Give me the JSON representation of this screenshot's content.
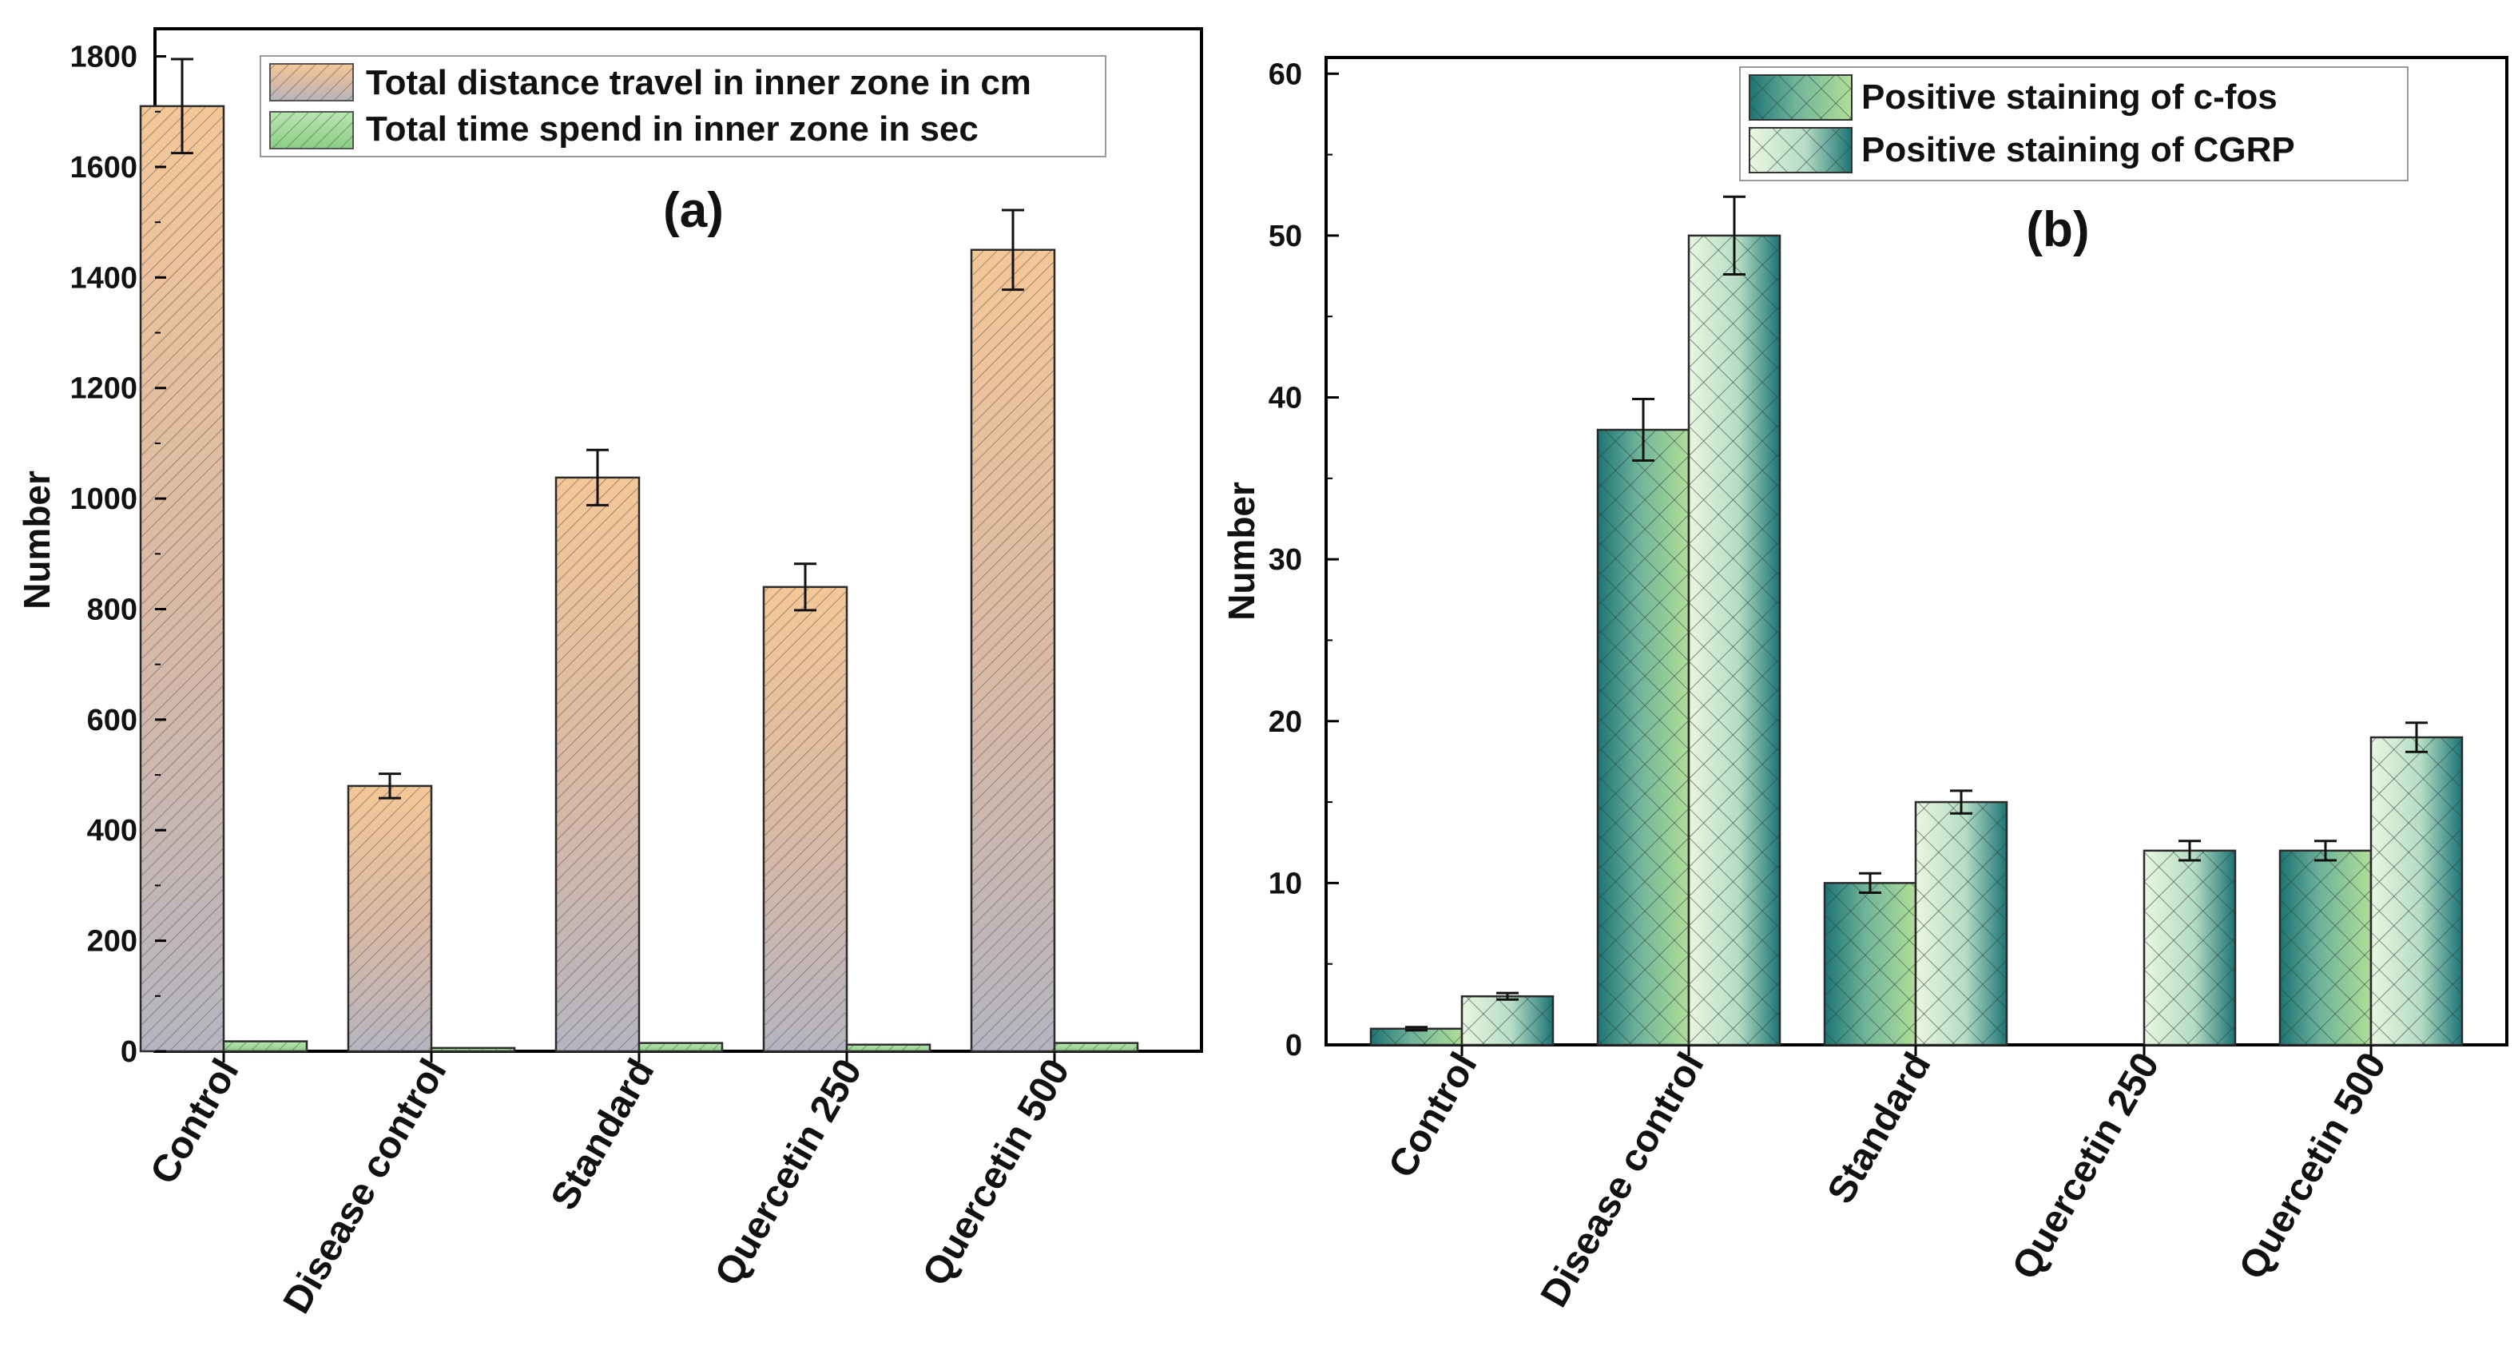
{
  "chart_data": [
    {
      "type": "bar",
      "panel_label": "(a)",
      "title": "",
      "xlabel": "",
      "ylabel": "Number",
      "ylim": [
        0,
        1850
      ],
      "yticks": [
        0,
        200,
        400,
        600,
        800,
        1000,
        1200,
        1400,
        1600,
        1800
      ],
      "categories": [
        "Control",
        "Disease control",
        "Standard",
        "Quercetin 250",
        "Quercetin 500"
      ],
      "series": [
        {
          "name": "Total distance travel in inner zone in cm",
          "values": [
            1710,
            480,
            1038,
            840,
            1450
          ],
          "errors": [
            85,
            22,
            50,
            42,
            72
          ],
          "color_top": "#f3c99a",
          "color_bottom": "#b7b7c2"
        },
        {
          "name": "Total time spend in inner zone in sec",
          "values": [
            18,
            6,
            15,
            12,
            15
          ],
          "errors": [
            0,
            0,
            0,
            0,
            0
          ],
          "color_top": "#a9dfa2",
          "color_bottom": "#a9dfa2"
        }
      ],
      "legend_position": "top-right"
    },
    {
      "type": "bar",
      "panel_label": "(b)",
      "title": "",
      "xlabel": "",
      "ylabel": "Number",
      "ylim": [
        0,
        61
      ],
      "yticks": [
        0,
        10,
        20,
        30,
        40,
        50,
        60
      ],
      "categories": [
        "Control",
        "Disease control",
        "Standard",
        "Quercetin 250",
        "Quercetin 500"
      ],
      "series": [
        {
          "name": "Positive staining of c-fos",
          "values": [
            1,
            38,
            10,
            0,
            12
          ],
          "errors": [
            0.1,
            1.9,
            0.6,
            0,
            0.6
          ],
          "color_light": "#a8d890",
          "color_dark": "#1f7a7a"
        },
        {
          "name": "Positive staining of CGRP",
          "values": [
            3,
            50,
            15,
            12,
            19
          ],
          "errors": [
            0.2,
            2.4,
            0.7,
            0.6,
            0.9
          ],
          "color_light": "#e2f2d6",
          "color_dark": "#1f7a7a"
        }
      ],
      "legend_position": "top-right"
    }
  ]
}
